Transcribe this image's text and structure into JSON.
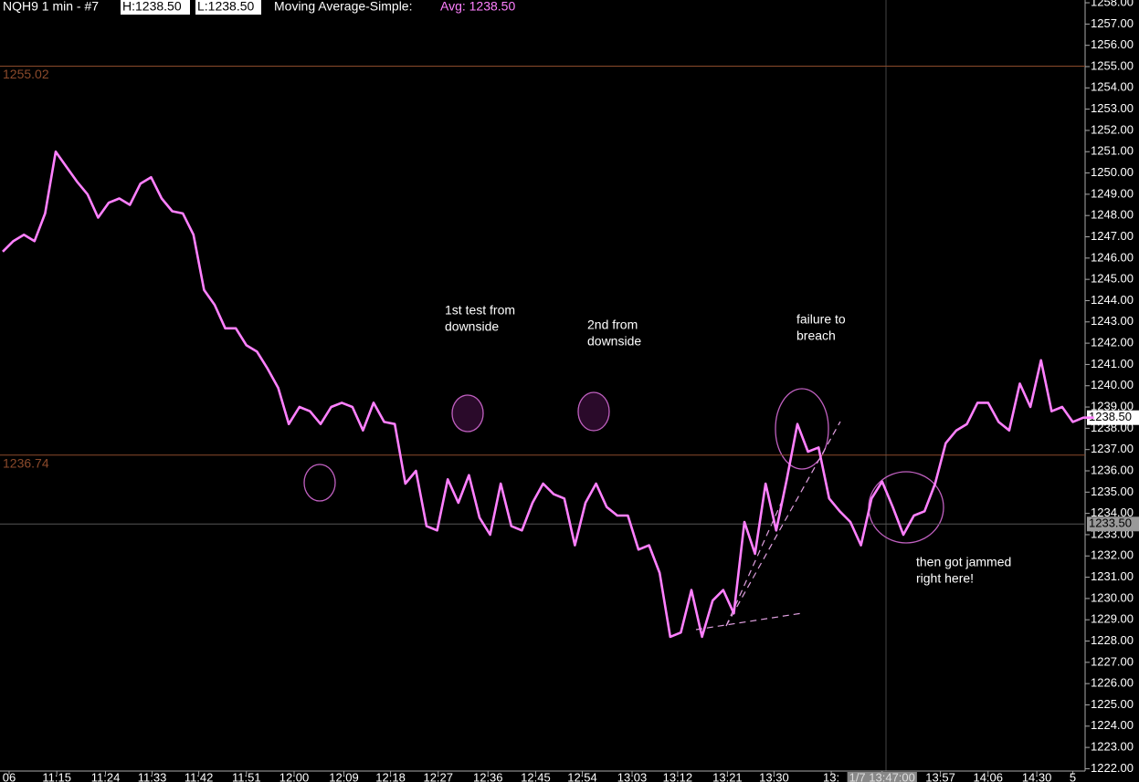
{
  "chart_data": {
    "type": "line",
    "title": "NQH9  1 min  - #7",
    "header": {
      "high": "H:1238.50",
      "low": "L:1238.50",
      "study": "Moving Average-Simple:",
      "avg": "Avg: 1238.50"
    },
    "series": [
      {
        "name": "Moving Average-Simple",
        "color": "#ff80ff",
        "values": [
          1246.3,
          1246.8,
          1247.1,
          1246.8,
          1248.1,
          1251.0,
          1250.3,
          1249.6,
          1249.0,
          1247.9,
          1248.6,
          1248.8,
          1248.5,
          1249.5,
          1249.8,
          1248.8,
          1248.2,
          1248.1,
          1247.1,
          1244.5,
          1243.8,
          1242.7,
          1242.7,
          1241.9,
          1241.6,
          1240.8,
          1239.9,
          1238.2,
          1239.0,
          1238.8,
          1238.2,
          1239.0,
          1239.2,
          1239.0,
          1237.9,
          1239.2,
          1238.3,
          1238.2,
          1235.4,
          1236.0,
          1233.4,
          1233.2,
          1235.6,
          1234.5,
          1235.8,
          1233.8,
          1233.0,
          1235.4,
          1233.4,
          1233.2,
          1234.5,
          1235.4,
          1234.9,
          1234.7,
          1232.5,
          1234.5,
          1235.4,
          1234.3,
          1233.9,
          1233.9,
          1232.3,
          1232.5,
          1231.2,
          1228.2,
          1228.4,
          1230.4,
          1228.2,
          1229.9,
          1230.4,
          1229.3,
          1233.6,
          1232.1,
          1235.4,
          1233.2,
          1235.6,
          1238.2,
          1236.9,
          1237.1,
          1234.7,
          1234.1,
          1233.6,
          1232.5,
          1234.7,
          1235.5,
          1234.3,
          1233.0,
          1233.9,
          1234.1,
          1235.4,
          1237.3,
          1237.9,
          1238.2,
          1239.2,
          1239.2,
          1238.3,
          1237.9,
          1240.1,
          1239.0,
          1241.2,
          1238.8,
          1239.0,
          1238.3,
          1238.5,
          1238.5
        ]
      }
    ],
    "xlim": [
      -0.26,
      102.16
    ],
    "xticks": [
      {
        "value": 0.6,
        "label": "06"
      },
      {
        "value": 5.1,
        "label": "11:15"
      },
      {
        "value": 9.7,
        "label": "11:24"
      },
      {
        "value": 14.1,
        "label": "11:33"
      },
      {
        "value": 18.5,
        "label": "11:42"
      },
      {
        "value": 23.0,
        "label": "11:51"
      },
      {
        "value": 27.5,
        "label": "12:00"
      },
      {
        "value": 32.2,
        "label": "12:09"
      },
      {
        "value": 36.6,
        "label": "12:18"
      },
      {
        "value": 41.1,
        "label": "12:27"
      },
      {
        "value": 45.8,
        "label": "12:36"
      },
      {
        "value": 50.3,
        "label": "12:45"
      },
      {
        "value": 54.7,
        "label": "12:54"
      },
      {
        "value": 59.4,
        "label": "13:03"
      },
      {
        "value": 63.7,
        "label": "13:12"
      },
      {
        "value": 68.4,
        "label": "13:21"
      },
      {
        "value": 72.8,
        "label": "13:30"
      },
      {
        "value": 78.2,
        "label": "13:"
      },
      {
        "value": 83.0,
        "label": "1/7 13:47:00"
      },
      {
        "value": 88.5,
        "label": "13:57"
      },
      {
        "value": 93.0,
        "label": "14:06"
      },
      {
        "value": 97.6,
        "label": "14:30"
      },
      {
        "value": 101.0,
        "label": "5"
      }
    ],
    "ylim": [
      1221.89,
      1258.13
    ],
    "yticks": [
      {
        "value": 1222,
        "label": "1222.00"
      },
      {
        "value": 1223,
        "label": "1223.00"
      },
      {
        "value": 1224,
        "label": "1224.00"
      },
      {
        "value": 1225,
        "label": "1225.00"
      },
      {
        "value": 1226,
        "label": "1226.00"
      },
      {
        "value": 1227,
        "label": "1227.00"
      },
      {
        "value": 1228,
        "label": "1228.00"
      },
      {
        "value": 1229,
        "label": "1229.00"
      },
      {
        "value": 1230,
        "label": "1230.00"
      },
      {
        "value": 1231,
        "label": "1231.00"
      },
      {
        "value": 1232,
        "label": "1232.00"
      },
      {
        "value": 1233,
        "label": "1233.00"
      },
      {
        "value": 1234,
        "label": "1234.00"
      },
      {
        "value": 1235,
        "label": "1235.00"
      },
      {
        "value": 1236,
        "label": "1236.00"
      },
      {
        "value": 1237,
        "label": "1237.00"
      },
      {
        "value": 1238,
        "label": "1238.00"
      },
      {
        "value": 1239,
        "label": "1239.00"
      },
      {
        "value": 1240,
        "label": "1240.00"
      },
      {
        "value": 1241,
        "label": "1241.00"
      },
      {
        "value": 1242,
        "label": "1242.00"
      },
      {
        "value": 1243,
        "label": "1243.00"
      },
      {
        "value": 1244,
        "label": "1244.00"
      },
      {
        "value": 1245,
        "label": "1245.00"
      },
      {
        "value": 1246,
        "label": "1246.00"
      },
      {
        "value": 1247,
        "label": "1247.00"
      },
      {
        "value": 1248,
        "label": "1248.00"
      },
      {
        "value": 1249,
        "label": "1249.00"
      },
      {
        "value": 1250,
        "label": "1250.00"
      },
      {
        "value": 1251,
        "label": "1251.00"
      },
      {
        "value": 1252,
        "label": "1252.00"
      },
      {
        "value": 1253,
        "label": "1253.00"
      },
      {
        "value": 1254,
        "label": "1254.00"
      },
      {
        "value": 1255,
        "label": "1255.00"
      },
      {
        "value": 1256,
        "label": "1256.00"
      },
      {
        "value": 1257,
        "label": "1257.00"
      },
      {
        "value": 1258,
        "label": "1258.00"
      }
    ],
    "levels": [
      {
        "value": 1255.02,
        "label": "1255.02",
        "color": "#8b4a2b"
      },
      {
        "value": 1236.74,
        "label": "1236.74",
        "color": "#8b4a2b"
      }
    ],
    "cursor_level": {
      "value": 1233.5,
      "label": "1233.50"
    },
    "last_price": {
      "value": 1238.5,
      "label": "1238.50"
    },
    "annotations": [
      [
        "1st test from",
        "downside"
      ],
      [
        "2nd from",
        "downside"
      ],
      [
        "failure to",
        "breach"
      ],
      [
        "then got jammed",
        "right here!"
      ]
    ]
  }
}
